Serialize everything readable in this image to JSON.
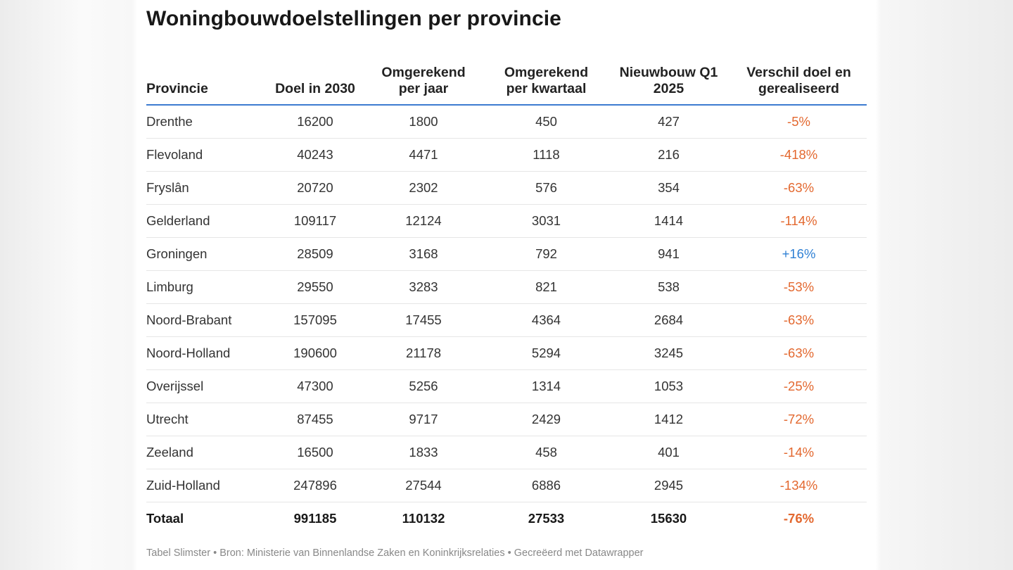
{
  "title": "Woningbouwdoelstellingen per provincie",
  "footer": "Tabel Slimster • Bron: Ministerie van Binnenlandse Zaken en Koninkrijksrelaties • Gecreëerd met Datawrapper",
  "colors": {
    "negative": "#e3682f",
    "positive": "#2f80d4",
    "header_rule": "#3d7bd0"
  },
  "chart_data": {
    "type": "table",
    "title": "Woningbouwdoelstellingen per provincie",
    "columns": [
      "Provincie",
      "Doel in 2030",
      "Omgerekend per jaar",
      "Omgerekend per kwartaal",
      "Nieuwbouw Q1 2025",
      "Verschil doel en gerealiseerd"
    ],
    "header_lines": [
      [
        "Provincie"
      ],
      [
        "Doel in 2030"
      ],
      [
        "Omgerekend",
        "per jaar"
      ],
      [
        "Omgerekend",
        "per kwartaal"
      ],
      [
        "Nieuwbouw Q1",
        "2025"
      ],
      [
        "Verschil doel en",
        "gerealiseerd"
      ]
    ],
    "rows": [
      [
        "Drenthe",
        "16200",
        "1800",
        "450",
        "427",
        "-5%"
      ],
      [
        "Flevoland",
        "40243",
        "4471",
        "1118",
        "216",
        "-418%"
      ],
      [
        "Fryslân",
        "20720",
        "2302",
        "576",
        "354",
        "-63%"
      ],
      [
        "Gelderland",
        "109117",
        "12124",
        "3031",
        "1414",
        "-114%"
      ],
      [
        "Groningen",
        "28509",
        "3168",
        "792",
        "941",
        "+16%"
      ],
      [
        "Limburg",
        "29550",
        "3283",
        "821",
        "538",
        "-53%"
      ],
      [
        "Noord-Brabant",
        "157095",
        "17455",
        "4364",
        "2684",
        "-63%"
      ],
      [
        "Noord-Holland",
        "190600",
        "21178",
        "5294",
        "3245",
        "-63%"
      ],
      [
        "Overijssel",
        "47300",
        "5256",
        "1314",
        "1053",
        "-25%"
      ],
      [
        "Utrecht",
        "87455",
        "9717",
        "2429",
        "1412",
        "-72%"
      ],
      [
        "Zeeland",
        "16500",
        "1833",
        "458",
        "401",
        "-14%"
      ],
      [
        "Zuid-Holland",
        "247896",
        "27544",
        "6886",
        "2945",
        "-134%"
      ]
    ],
    "total": [
      "Totaal",
      "991185",
      "110132",
      "27533",
      "15630",
      "-76%"
    ]
  }
}
